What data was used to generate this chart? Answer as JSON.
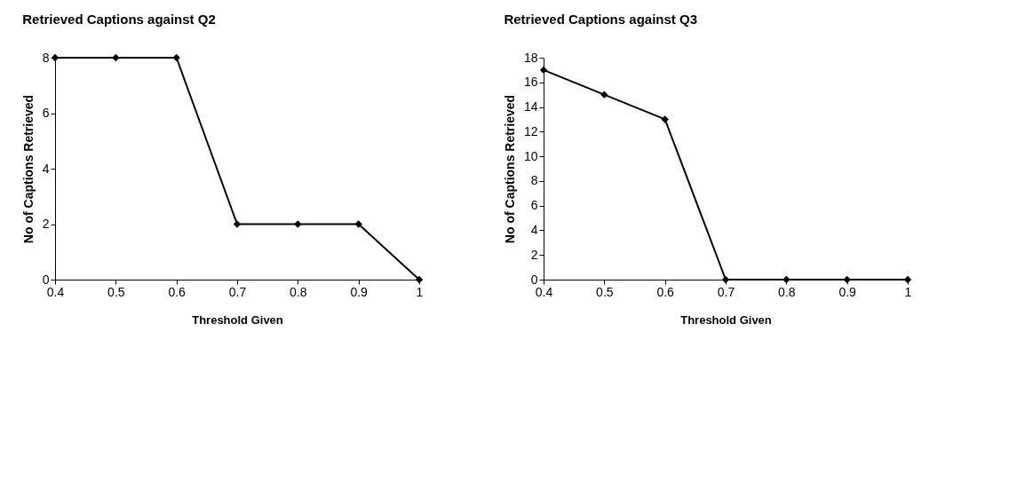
{
  "chart_data": [
    {
      "type": "line",
      "title": "Retrieved Captions against Q2",
      "xlabel": "Threshold Given",
      "ylabel": "No of Captions Retrieved",
      "categories": [
        "0.4",
        "0.5",
        "0.6",
        "0.7",
        "0.8",
        "0.9",
        "1"
      ],
      "series": [
        {
          "color": "#000000",
          "values": [
            8,
            8,
            8,
            2,
            2,
            2,
            0
          ]
        }
      ],
      "ylim": [
        0,
        8
      ],
      "yticks": [
        0,
        2,
        4,
        6,
        8
      ],
      "grid": false,
      "marker": "diamond",
      "line_style": "solid"
    },
    {
      "type": "line",
      "title": "Retrieved Captions against Q3",
      "xlabel": "Threshold Given",
      "ylabel": "No of Captions Retrieved",
      "categories": [
        "0.4",
        "0.5",
        "0.6",
        "0.7",
        "0.8",
        "0.9",
        "1"
      ],
      "series": [
        {
          "color": "#000000",
          "values": [
            17,
            15,
            13,
            0,
            0,
            0,
            0
          ]
        }
      ],
      "ylim": [
        0,
        18
      ],
      "yticks": [
        0,
        2,
        4,
        6,
        8,
        10,
        12,
        14,
        16,
        18
      ],
      "grid": false,
      "marker": "diamond",
      "line_style": "solid"
    }
  ]
}
